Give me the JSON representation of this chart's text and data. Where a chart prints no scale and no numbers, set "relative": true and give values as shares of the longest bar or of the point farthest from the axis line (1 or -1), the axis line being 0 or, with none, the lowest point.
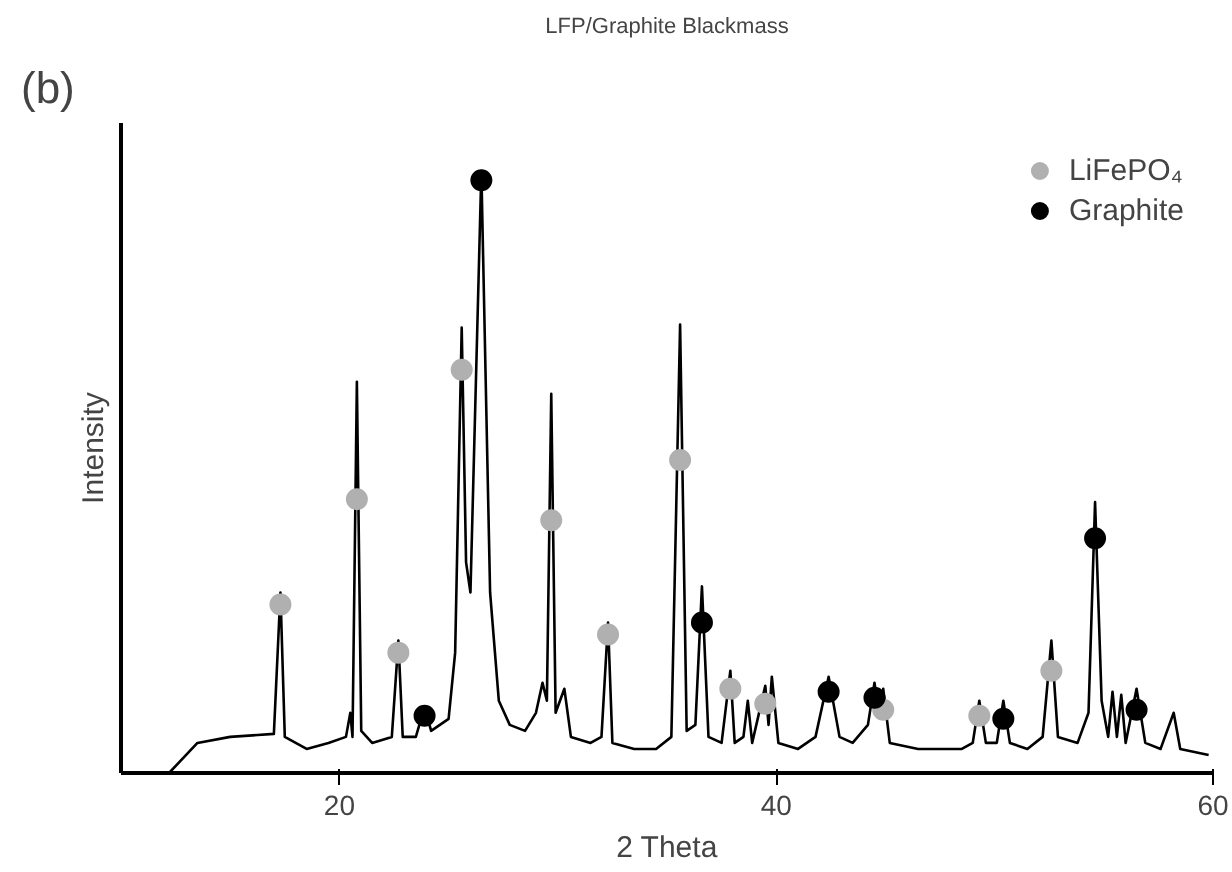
{
  "chart_data": {
    "type": "line",
    "title": "LFP/Graphite Blackmass",
    "xlabel": "2 Theta",
    "ylabel": "Intensity",
    "annotations": [
      "(b)"
    ],
    "relative": true,
    "xlim": [
      10,
      60
    ],
    "xticks": [
      20,
      40,
      60
    ],
    "tick_labels": "x",
    "grid": false,
    "legend": "top right",
    "marker": "none",
    "line_style": "solid",
    "series": [
      {
        "color": "#000000",
        "x": [
          12.2,
          13.5,
          15.0,
          17.0,
          17.3,
          17.5,
          18.5,
          19.5,
          20.3,
          20.5,
          20.6,
          20.8,
          21.0,
          21.5,
          22.4,
          22.7,
          22.9,
          23.5,
          23.9,
          24.2,
          25.0,
          25.3,
          25.6,
          25.8,
          26.0,
          26.5,
          26.9,
          27.3,
          27.8,
          28.5,
          29.0,
          29.3,
          29.5,
          29.7,
          29.9,
          30.3,
          30.6,
          31.5,
          32.0,
          32.3,
          32.5,
          33.5,
          34.5,
          35.2,
          35.6,
          35.9,
          36.3,
          36.6,
          36.9,
          37.5,
          37.9,
          38.1,
          38.5,
          38.7,
          38.9,
          39.5,
          39.65,
          39.8,
          40.1,
          41.0,
          41.8,
          42.4,
          42.9,
          43.5,
          44.2,
          44.5,
          44.7,
          44.9,
          45.2,
          46.5,
          47.5,
          48.5,
          49.0,
          49.3,
          49.6,
          50.1,
          50.4,
          50.7,
          51.5,
          52.2,
          52.6,
          52.9,
          53.8,
          54.3,
          54.6,
          54.9,
          55.2,
          55.4,
          55.6,
          55.8,
          56.0,
          56.5,
          56.9,
          57.6,
          58.2,
          58.5,
          59.8
        ],
        "values": [
          0.0,
          0.05,
          0.06,
          0.065,
          0.3,
          0.06,
          0.04,
          0.05,
          0.06,
          0.1,
          0.06,
          0.65,
          0.07,
          0.05,
          0.06,
          0.22,
          0.06,
          0.06,
          0.11,
          0.07,
          0.09,
          0.2,
          0.74,
          0.35,
          0.3,
          1.0,
          0.3,
          0.12,
          0.08,
          0.07,
          0.1,
          0.15,
          0.12,
          0.63,
          0.1,
          0.14,
          0.06,
          0.05,
          0.06,
          0.25,
          0.05,
          0.04,
          0.04,
          0.06,
          0.745,
          0.07,
          0.08,
          0.31,
          0.06,
          0.05,
          0.17,
          0.05,
          0.06,
          0.12,
          0.05,
          0.145,
          0.08,
          0.16,
          0.05,
          0.04,
          0.06,
          0.16,
          0.06,
          0.05,
          0.08,
          0.15,
          0.1,
          0.14,
          0.05,
          0.04,
          0.04,
          0.04,
          0.05,
          0.12,
          0.05,
          0.05,
          0.12,
          0.05,
          0.04,
          0.06,
          0.22,
          0.06,
          0.05,
          0.1,
          0.45,
          0.12,
          0.06,
          0.135,
          0.06,
          0.13,
          0.05,
          0.14,
          0.05,
          0.04,
          0.1,
          0.04,
          0.03
        ]
      },
      {
        "type": "scatter",
        "name": "LiFePO₄",
        "color": "#b0b0b0",
        "marker": "circle",
        "x": [
          17.3,
          20.8,
          22.7,
          25.6,
          29.7,
          32.3,
          35.6,
          37.9,
          39.5,
          44.9,
          49.3,
          52.6
        ],
        "values": [
          0.28,
          0.455,
          0.2,
          0.67,
          0.42,
          0.23,
          0.52,
          0.14,
          0.115,
          0.105,
          0.095,
          0.17
        ]
      },
      {
        "type": "scatter",
        "name": "Graphite",
        "color": "#000000",
        "marker": "circle",
        "x": [
          23.9,
          26.5,
          36.6,
          42.4,
          44.5,
          50.4,
          54.6,
          56.5
        ],
        "values": [
          0.095,
          0.985,
          0.25,
          0.135,
          0.125,
          0.09,
          0.39,
          0.105
        ]
      }
    ]
  }
}
